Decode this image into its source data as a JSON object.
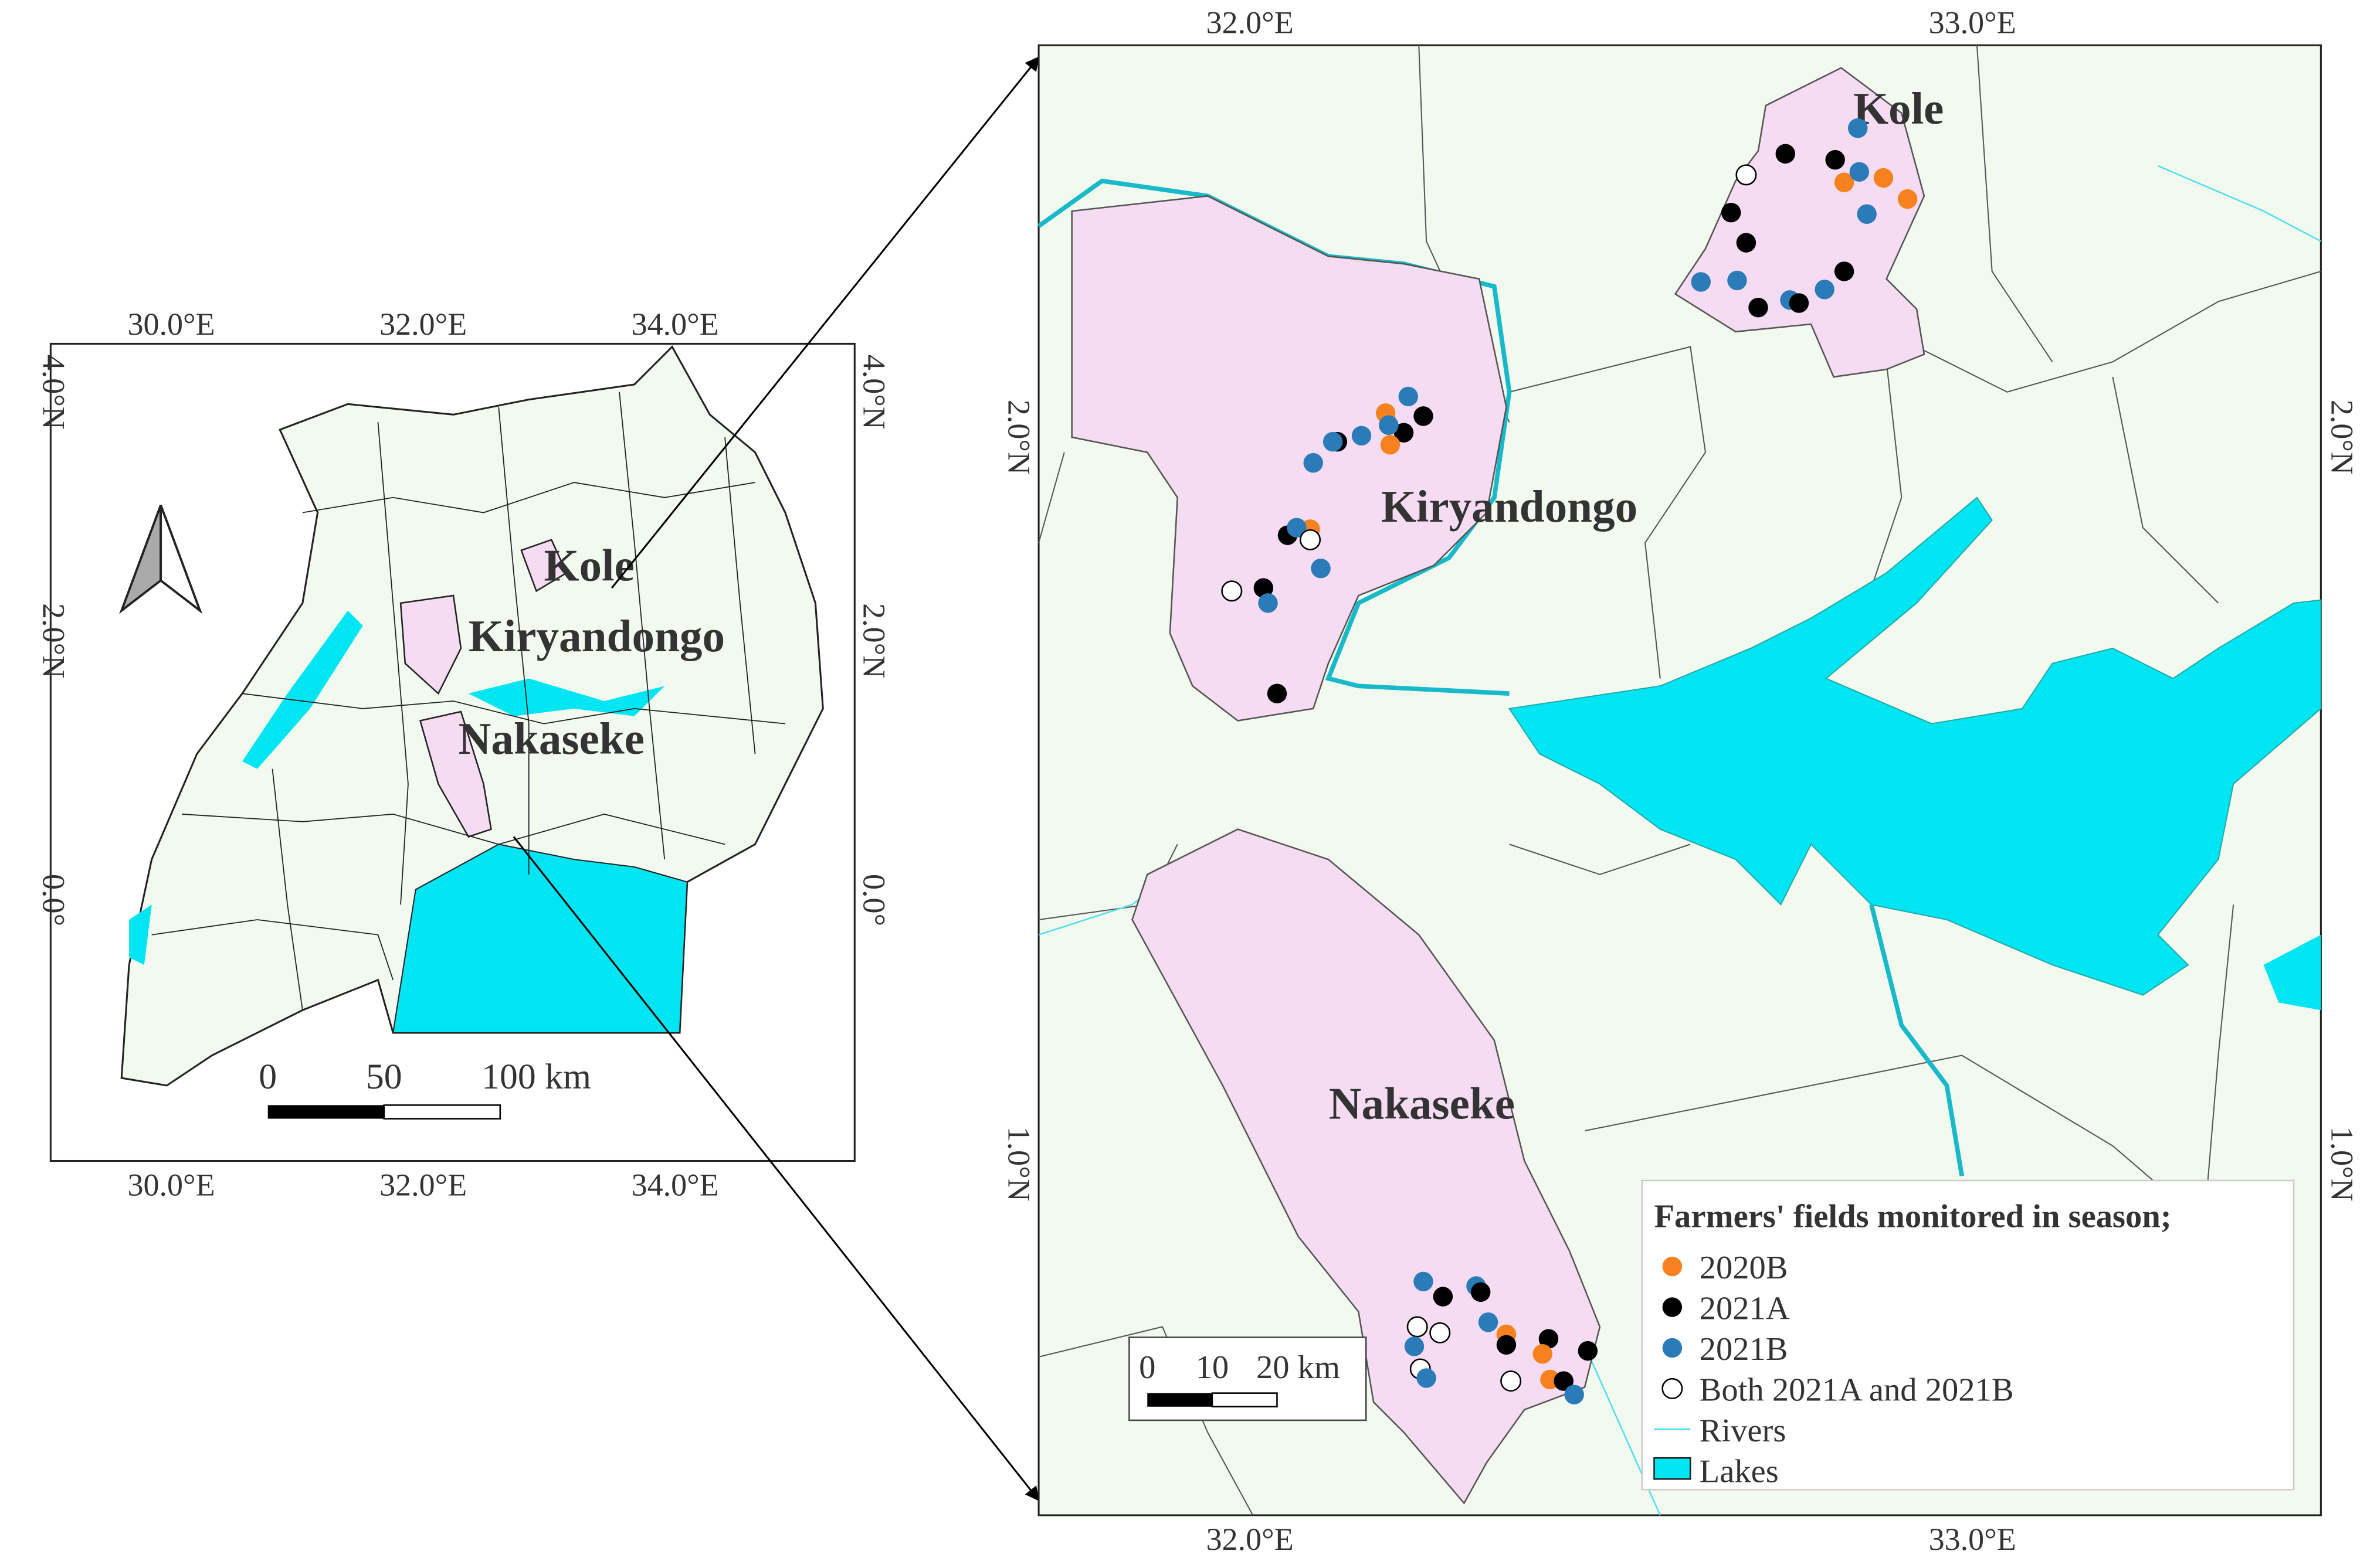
{
  "overview_map": {
    "lon_labels": [
      "30.0°E",
      "32.0°E",
      "34.0°E"
    ],
    "lat_labels": [
      "4.0°N",
      "2.0°N",
      "0.0°"
    ],
    "districts": [
      "Kole",
      "Kiryandongo",
      "Nakaseke"
    ],
    "scale_bar": [
      "0",
      "50",
      "100 km"
    ]
  },
  "detail_map": {
    "lon_labels": [
      "32.0°E",
      "33.0°E"
    ],
    "lat_labels": [
      "2.0°N",
      "1.0°N"
    ],
    "districts": [
      "Kole",
      "Kiryandongo",
      "Nakaseke"
    ],
    "scale_bar": [
      "0",
      "10",
      "20 km"
    ]
  },
  "legend": {
    "title": "Farmers' fields monitored in season;",
    "items": [
      "2020B",
      "2021A",
      "2021B",
      "Both 2021A and 2021B",
      "Rivers",
      "Lakes"
    ]
  }
}
